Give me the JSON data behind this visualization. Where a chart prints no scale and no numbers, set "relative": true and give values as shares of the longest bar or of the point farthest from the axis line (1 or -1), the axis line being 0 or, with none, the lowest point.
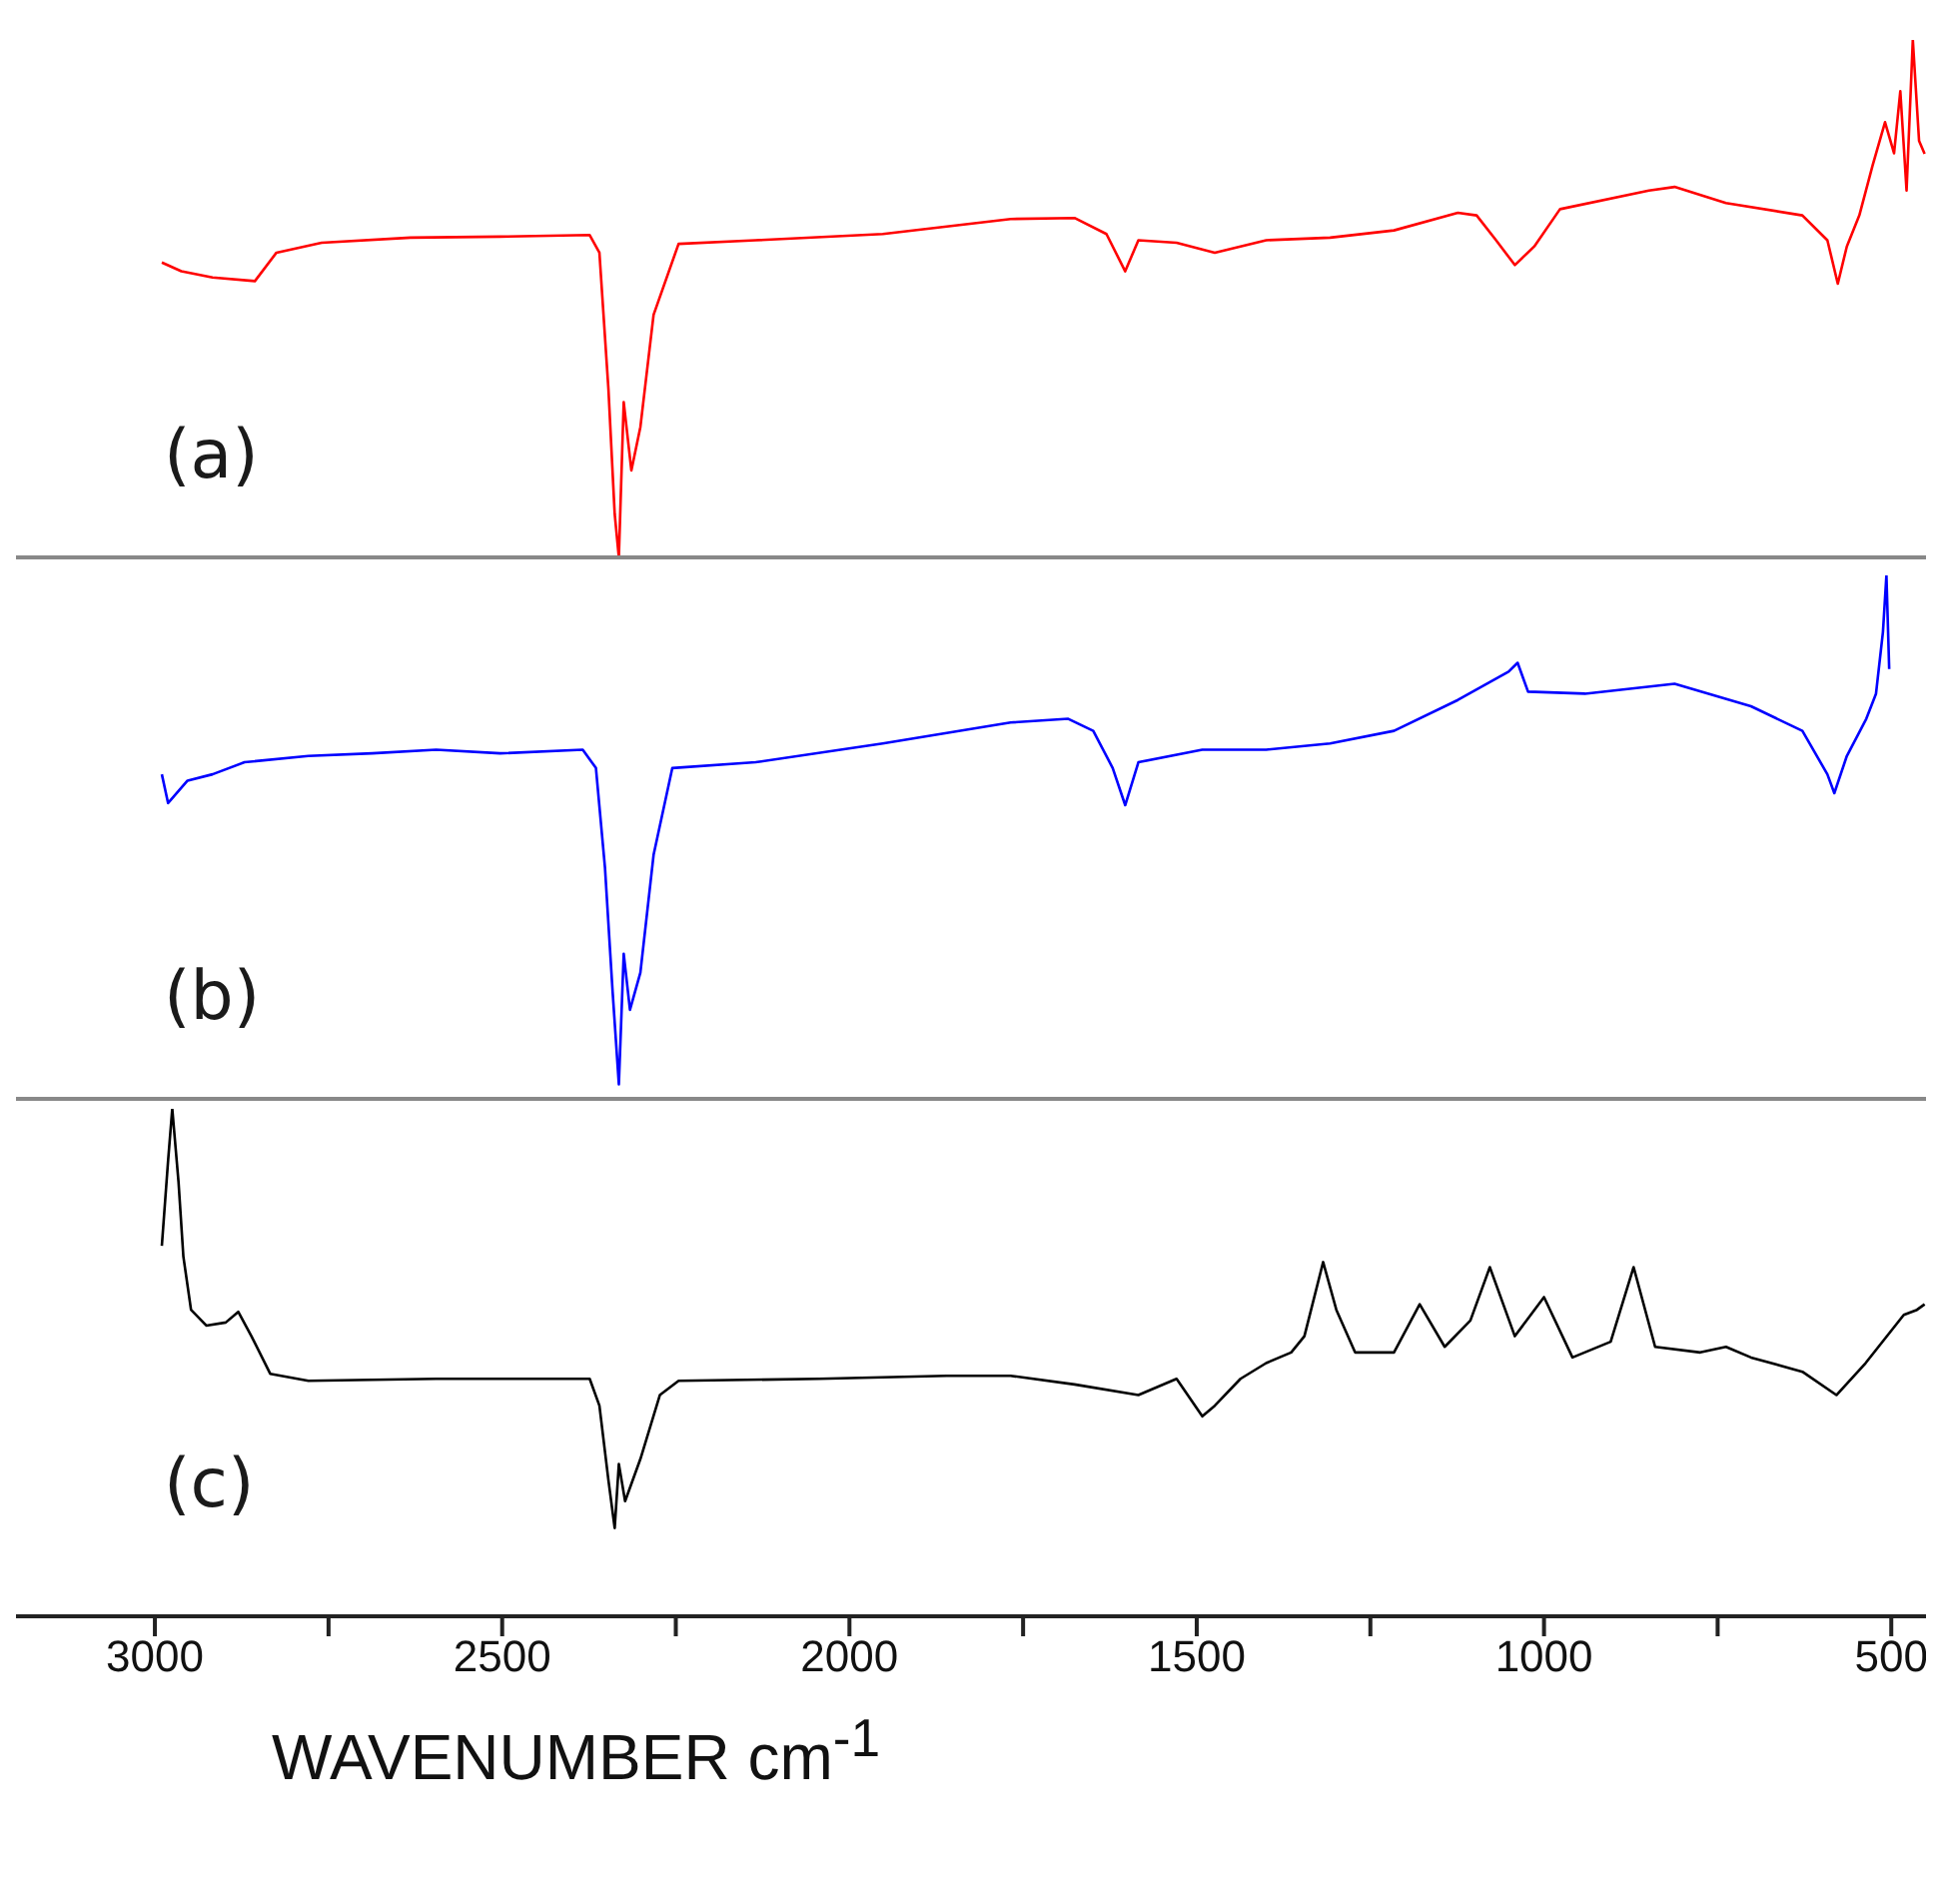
{
  "chart_data": [
    {
      "type": "line",
      "relative": true,
      "tick_labels": false,
      "xlim": [
        3200,
        450
      ],
      "annotations": [
        "(a)"
      ],
      "x": [
        2990,
        2962,
        2917,
        2856,
        2825,
        2760,
        2632,
        2503,
        2374,
        2360,
        2347,
        2338,
        2332,
        2325,
        2314,
        2301,
        2282,
        2246,
        2135,
        1952,
        1768,
        1676,
        1630,
        1603,
        1584,
        1529,
        1474,
        1400,
        1308,
        1216,
        1124,
        1097,
        1069,
        1042,
        1014,
        977,
        849,
        812,
        738,
        628,
        592,
        577,
        564,
        546,
        527,
        509,
        496,
        487,
        478,
        469,
        460,
        452
      ],
      "series": [
        {
          "color": "#ff0000",
          "values": [
            0.57,
            0.553,
            0.541,
            0.534,
            0.589,
            0.608,
            0.618,
            0.62,
            0.623,
            0.589,
            0.325,
            0.084,
            0,
            0.3,
            0.168,
            0.252,
            0.469,
            0.606,
            0.613,
            0.625,
            0.654,
            0.656,
            0.625,
            0.553,
            0.613,
            0.608,
            0.589,
            0.613,
            0.618,
            0.632,
            0.666,
            0.661,
            0.613,
            0.565,
            0.601,
            0.673,
            0.709,
            0.716,
            0.685,
            0.661,
            0.613,
            0.529,
            0.601,
            0.661,
            0.757,
            0.841,
            0.781,
            0.901,
            0.709,
            1,
            0.805,
            0.78
          ]
        }
      ]
    },
    {
      "type": "line",
      "relative": true,
      "tick_labels": false,
      "xlim": [
        3200,
        450
      ],
      "annotations": [
        "(b)"
      ],
      "x": [
        2990,
        2981,
        2953,
        2917,
        2871,
        2779,
        2687,
        2595,
        2503,
        2384,
        2365,
        2352,
        2341,
        2332,
        2325,
        2316,
        2301,
        2282,
        2255,
        2135,
        1952,
        1768,
        1685,
        1649,
        1621,
        1603,
        1584,
        1492,
        1400,
        1308,
        1216,
        1124,
        1051,
        1038,
        1023,
        941,
        812,
        702,
        628,
        592,
        582,
        564,
        536,
        522,
        512,
        507,
        503
      ],
      "series": [
        {
          "color": "#0000ff",
          "values": [
            0.62,
            0.565,
            0.608,
            0.62,
            0.643,
            0.655,
            0.66,
            0.667,
            0.66,
            0.667,
            0.632,
            0.442,
            0.205,
            0.028,
            0.277,
            0.17,
            0.241,
            0.466,
            0.632,
            0.643,
            0.679,
            0.719,
            0.726,
            0.703,
            0.632,
            0.561,
            0.643,
            0.667,
            0.667,
            0.679,
            0.703,
            0.762,
            0.816,
            0.833,
            0.778,
            0.774,
            0.793,
            0.75,
            0.703,
            0.62,
            0.584,
            0.655,
            0.726,
            0.774,
            0.892,
            1,
            0.821
          ]
        }
      ]
    },
    {
      "type": "line",
      "relative": true,
      "tick_labels": "x",
      "xlim": [
        3200,
        450
      ],
      "xlabel": "WAVENUMBER cm$^{-1}$",
      "annotations": [
        "(c)"
      ],
      "xticks": [
        3000,
        {
          "value": 2750,
          "label": null
        },
        2500,
        {
          "value": 2250,
          "label": null
        },
        2000,
        {
          "value": 1750,
          "label": null
        },
        1500,
        {
          "value": 1250,
          "label": null
        },
        1000,
        {
          "value": 750,
          "label": null
        },
        500
      ],
      "x": [
        2990,
        2981,
        2975,
        2966,
        2959,
        2948,
        2926,
        2898,
        2880,
        2861,
        2834,
        2779,
        2595,
        2374,
        2360,
        2347,
        2338,
        2332,
        2323,
        2301,
        2273,
        2246,
        2044,
        1860,
        1768,
        1676,
        1584,
        1529,
        1492,
        1474,
        1437,
        1400,
        1364,
        1345,
        1318,
        1299,
        1272,
        1216,
        1179,
        1143,
        1106,
        1078,
        1042,
        1000,
        959,
        904,
        871,
        840,
        775,
        738,
        702,
        628,
        579,
        537,
        482,
        463,
        452
      ],
      "series": [
        {
          "color": "#000000",
          "values": [
            0.73,
            0.898,
            1,
            0.856,
            0.709,
            0.604,
            0.573,
            0.579,
            0.6,
            0.552,
            0.478,
            0.464,
            0.468,
            0.468,
            0.415,
            0.268,
            0.174,
            0.3,
            0.227,
            0.31,
            0.436,
            0.464,
            0.468,
            0.474,
            0.474,
            0.457,
            0.436,
            0.468,
            0.394,
            0.415,
            0.468,
            0.499,
            0.52,
            0.552,
            0.698,
            0.604,
            0.52,
            0.52,
            0.615,
            0.531,
            0.583,
            0.688,
            0.552,
            0.629,
            0.51,
            0.541,
            0.688,
            0.531,
            0.52,
            0.531,
            0.51,
            0.482,
            0.436,
            0.499,
            0.594,
            0.604,
            0.615
          ]
        }
      ]
    }
  ]
}
